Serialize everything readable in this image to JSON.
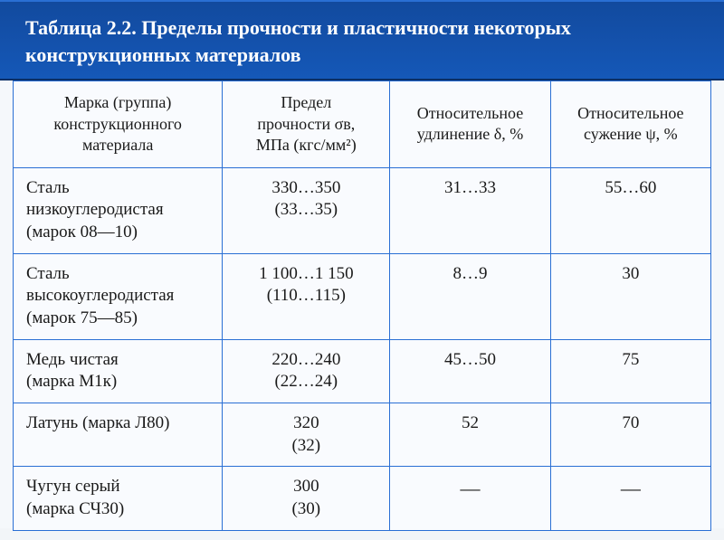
{
  "title": "Таблица 2.2. Пределы прочности и пластичности некоторых конструкционных материалов",
  "colors": {
    "header_bg_top": "#124a9e",
    "header_bg_bottom": "#1558b8",
    "header_text": "#ffffff",
    "border": "#2a6fd4",
    "page_bg": "#f5f8fb",
    "cell_text": "#1a1a1a"
  },
  "columns": [
    {
      "label_line1": "Марка (группа)",
      "label_line2": "конструкционного",
      "label_line3": "материала"
    },
    {
      "label_line1": "Предел",
      "label_line2": "прочности σв,",
      "label_line3": "МПа (кгс/мм²)"
    },
    {
      "label_line1": "Относительное",
      "label_line2": "удлинение δ, %"
    },
    {
      "label_line1": "Относительное",
      "label_line2": "сужение ψ, %"
    }
  ],
  "rows": [
    {
      "material_l1": "Сталь",
      "material_l2": "низкоуглеродистая",
      "material_l3": "(марок 08—10)",
      "strength_main": "330…350",
      "strength_sub": "(33…35)",
      "elongation": "31…33",
      "contraction": "55…60"
    },
    {
      "material_l1": "Сталь",
      "material_l2": "высокоуглеродистая",
      "material_l3": "(марок 75—85)",
      "strength_main": "1 100…1 150",
      "strength_sub": "(110…115)",
      "elongation": "8…9",
      "contraction": "30"
    },
    {
      "material_l1": "Медь чистая",
      "material_l2": "(марка М1к)",
      "material_l3": "",
      "strength_main": "220…240",
      "strength_sub": "(22…24)",
      "elongation": "45…50",
      "contraction": "75"
    },
    {
      "material_l1": "Латунь (марка Л80)",
      "material_l2": "",
      "material_l3": "",
      "strength_main": "320",
      "strength_sub": "(32)",
      "elongation": "52",
      "contraction": "70"
    },
    {
      "material_l1": "Чугун серый",
      "material_l2": "(марка СЧ30)",
      "material_l3": "",
      "strength_main": "300",
      "strength_sub": "(30)",
      "elongation": "—",
      "contraction": "—"
    }
  ]
}
